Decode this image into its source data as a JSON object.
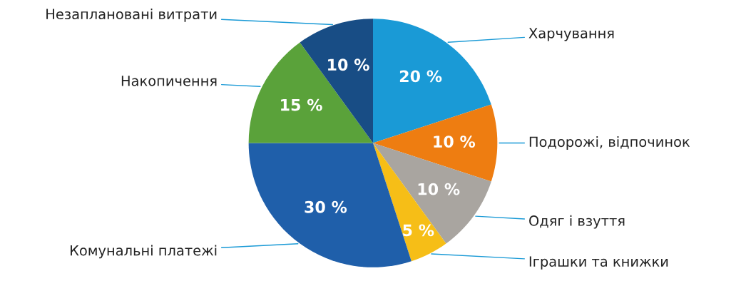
{
  "chart_data": {
    "type": "pie",
    "categories": [
      "Харчування",
      "Подорожі, відпочинок",
      "Одяг і взуття",
      "Іграшки та книжки",
      "Комунальні платежі",
      "Накопичення",
      "Незаплановані витрати"
    ],
    "values": [
      20,
      10,
      10,
      5,
      30,
      15,
      10
    ],
    "colors": [
      "#1a9ad6",
      "#ee7d11",
      "#a9a5a0",
      "#f6be17",
      "#1f5faa",
      "#5aa23a",
      "#184d85"
    ],
    "value_labels": [
      "20 %",
      "10 %",
      "10 %",
      "5 %",
      "30 %",
      "15 %",
      "10 %"
    ],
    "legend": false
  }
}
